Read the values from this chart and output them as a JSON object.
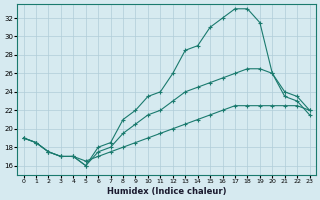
{
  "xlabel": "Humidex (Indice chaleur)",
  "ylabel": "",
  "bg_color": "#d6eaf0",
  "grid_color": "#b0cdd8",
  "line_color": "#1a7a6e",
  "xlim": [
    -0.5,
    23.5
  ],
  "ylim": [
    15,
    33.5
  ],
  "yticks": [
    16,
    18,
    20,
    22,
    24,
    26,
    28,
    30,
    32
  ],
  "xticks": [
    0,
    1,
    2,
    3,
    4,
    5,
    6,
    7,
    8,
    9,
    10,
    11,
    12,
    13,
    14,
    15,
    16,
    17,
    18,
    19,
    20,
    21,
    22,
    23
  ],
  "line1_x": [
    0,
    1,
    2,
    3,
    4,
    5,
    6,
    7,
    8,
    9,
    10,
    11,
    12,
    13,
    14,
    15,
    16,
    17,
    18,
    19,
    20,
    21,
    22,
    23
  ],
  "line1_y": [
    19.0,
    18.5,
    17.5,
    17.0,
    17.0,
    16.0,
    18.0,
    18.5,
    21.0,
    22.0,
    23.5,
    24.0,
    26.0,
    28.5,
    29.0,
    31.0,
    32.0,
    33.0,
    33.0,
    31.5,
    26.0,
    23.5,
    23.0,
    21.5
  ],
  "line2_x": [
    0,
    1,
    2,
    3,
    4,
    5,
    6,
    7,
    8,
    9,
    10,
    11,
    12,
    13,
    14,
    15,
    16,
    17,
    18,
    19,
    20,
    21,
    22,
    23
  ],
  "line2_y": [
    19.0,
    18.5,
    17.5,
    17.0,
    17.0,
    16.0,
    17.5,
    18.0,
    19.5,
    20.5,
    21.5,
    22.0,
    23.0,
    24.0,
    24.5,
    25.0,
    25.5,
    26.0,
    26.5,
    26.5,
    26.0,
    24.0,
    23.5,
    22.0
  ],
  "line3_x": [
    0,
    1,
    2,
    3,
    4,
    5,
    6,
    7,
    8,
    9,
    10,
    11,
    12,
    13,
    14,
    15,
    16,
    17,
    18,
    19,
    20,
    21,
    22,
    23
  ],
  "line3_y": [
    19.0,
    18.5,
    17.5,
    17.0,
    17.0,
    16.5,
    17.0,
    17.5,
    18.0,
    18.5,
    19.0,
    19.5,
    20.0,
    20.5,
    21.0,
    21.5,
    22.0,
    22.5,
    22.5,
    22.5,
    22.5,
    22.5,
    22.5,
    22.0
  ]
}
